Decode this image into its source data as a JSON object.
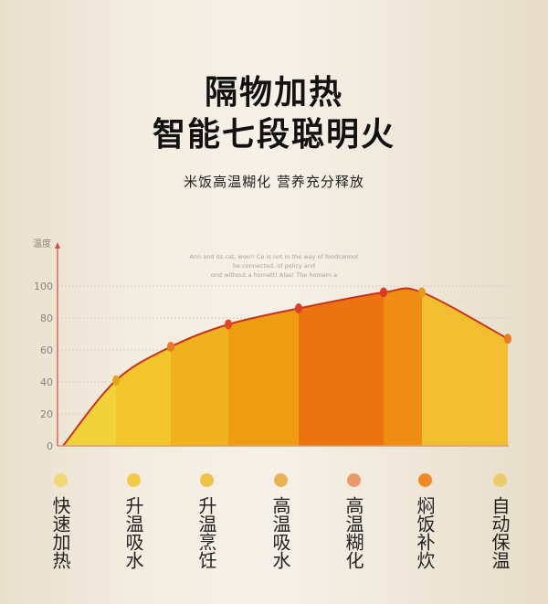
{
  "title_line1": "隔物加热",
  "title_line2": "智能七段聪明火",
  "subtitle": "米饭高温糊化 营养充分释放",
  "watermark_text": [
    "Ann and its cat, woo!! Ce is not in the way of foodcannot",
    "be connected, of policy and",
    "ond without a homett! Alas! The homem a"
  ],
  "chart_data": {
    "type": "area",
    "ylabel": "温度",
    "ylim": [
      0,
      100
    ],
    "yticks": [
      0,
      20,
      40,
      60,
      80,
      100
    ],
    "grid": true,
    "start_value": 0,
    "categories": [
      "快速加热",
      "升温吸水",
      "升温烹饪",
      "高温吸水",
      "高温糊化",
      "焖饭补炊",
      "自动保温"
    ],
    "values": [
      41,
      62,
      76,
      86,
      96,
      96,
      67
    ],
    "band_colors": [
      "#f1d23a",
      "#f2c52c",
      "#efb21e",
      "#ee9c12",
      "#ec7410",
      "#ef8c14",
      "#f0be2e"
    ],
    "point_colors": [
      "#e5a21e",
      "#e87a2a",
      "#e0462a",
      "#d8402a",
      "#dc3a24",
      "#e59a1e",
      "#e87a2a"
    ],
    "line_color": "#c8321c",
    "legend_dot_colors": [
      "#f2d77a",
      "#f3c94a",
      "#eec24a",
      "#e8b355",
      "#e89a6a",
      "#ee8a2a",
      "#eecb6a"
    ]
  }
}
